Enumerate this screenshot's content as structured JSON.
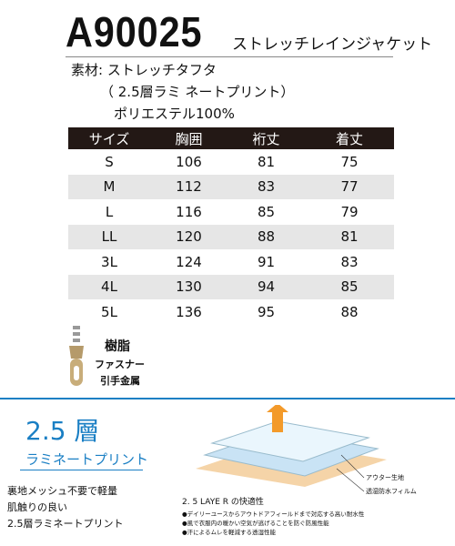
{
  "header": {
    "code": "A90025",
    "name": "ストレッチレインジャケット"
  },
  "material": [
    "素材: ストレッチタフタ",
    "（ 2.5層ラミ ネートプリント）",
    "ポリエステル100%"
  ],
  "table": {
    "headers": [
      "サイズ",
      "胸囲",
      "裄丈",
      "着丈"
    ],
    "rows": [
      [
        "S",
        106,
        81,
        75
      ],
      [
        "M",
        112,
        83,
        77
      ],
      [
        "L",
        116,
        85,
        79
      ],
      [
        "LL",
        120,
        88,
        81
      ],
      [
        "3L",
        124,
        91,
        83
      ],
      [
        "4L",
        130,
        94,
        85
      ],
      [
        "5L",
        136,
        95,
        88
      ]
    ]
  },
  "zipper": [
    "樹脂",
    "ファスナー",
    "引手金属"
  ],
  "feature": {
    "title": "2.5 層",
    "subtitle": "ラミネートプリント",
    "lines": [
      "裏地メッシュ不要で軽量",
      "肌触りの良い",
      "2.5層ラミネートプリント"
    ]
  },
  "diagram": {
    "labels": [
      "アウター生地",
      "透湿防水フィルム"
    ],
    "caption": "2. 5 LAYE R の快適性",
    "bullets": [
      "●デイリーユースからアウトドアフィールドまで対応する高い耐水性",
      "●風で衣服内の暖かい空気が逃げることを防ぐ防風性能",
      "●汗によるムレを軽減する透湿性能"
    ]
  }
}
